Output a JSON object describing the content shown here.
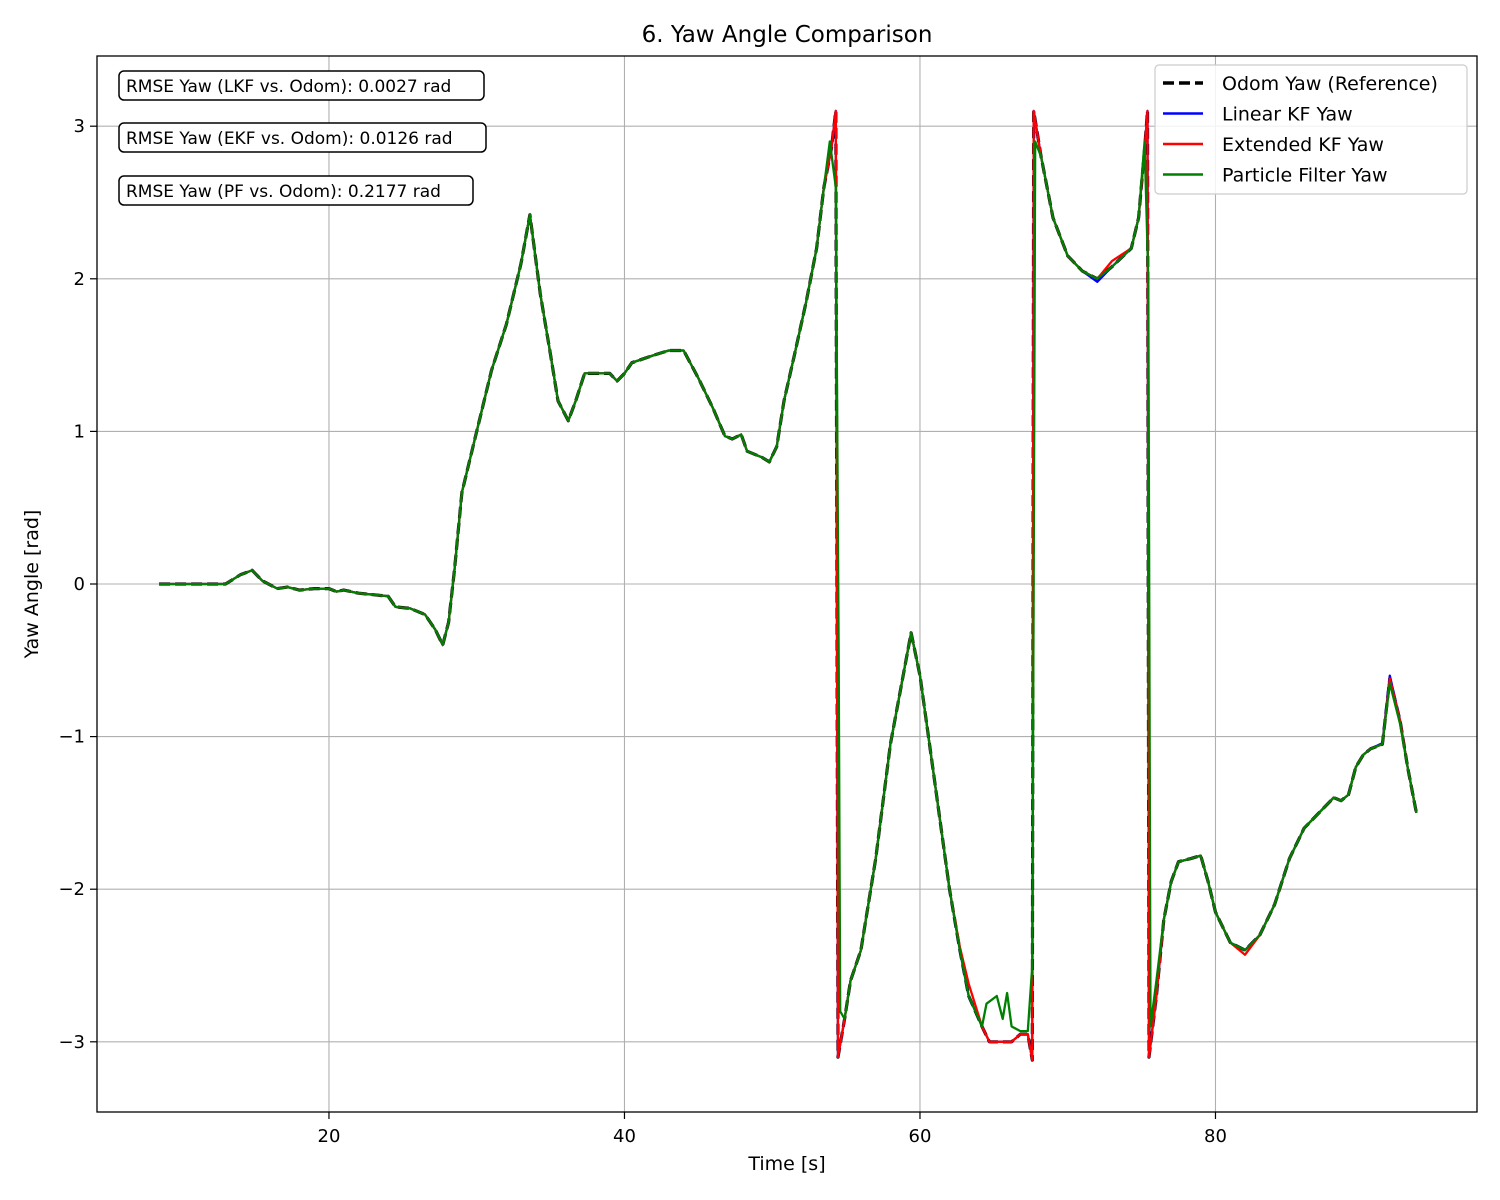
{
  "chart_data": {
    "type": "line",
    "title": "6. Yaw Angle Comparison",
    "xlabel": "Time [s]",
    "ylabel": "Yaw Angle [rad]",
    "xlim": [
      4.3,
      97.7
    ],
    "ylim": [
      -3.46,
      3.46
    ],
    "xticks": [
      20,
      40,
      60,
      80
    ],
    "yticks": [
      -3,
      -2,
      -1,
      0,
      1,
      2,
      3
    ],
    "xtick_labels": [
      "20",
      "40",
      "60",
      "80"
    ],
    "ytick_labels": [
      "−3",
      "−2",
      "−1",
      "0",
      "1",
      "2",
      "3"
    ],
    "grid": true,
    "legend_position": "top-right",
    "annotations": [
      "RMSE Yaw (LKF vs. Odom): 0.0027 rad",
      "RMSE Yaw (EKF vs. Odom): 0.0126 rad",
      "RMSE Yaw (PF vs. Odom): 0.2177 rad"
    ],
    "base": [
      [
        8.5,
        0
      ],
      [
        13,
        0
      ],
      [
        14,
        0.06
      ],
      [
        14.8,
        0.09
      ],
      [
        15.5,
        0.02
      ],
      [
        16.5,
        -0.03
      ],
      [
        17.2,
        -0.02
      ],
      [
        18,
        -0.04
      ],
      [
        19,
        -0.03
      ],
      [
        20,
        -0.03
      ],
      [
        20.5,
        -0.05
      ],
      [
        21,
        -0.04
      ],
      [
        22,
        -0.06
      ],
      [
        23,
        -0.07
      ],
      [
        24,
        -0.08
      ],
      [
        24.5,
        -0.15
      ],
      [
        25.5,
        -0.16
      ],
      [
        26.5,
        -0.2
      ],
      [
        27.2,
        -0.3
      ],
      [
        27.7,
        -0.4
      ],
      [
        28.1,
        -0.25
      ],
      [
        28.5,
        0.1
      ],
      [
        29,
        0.6
      ],
      [
        29.5,
        0.8
      ],
      [
        30,
        1.0
      ],
      [
        31,
        1.4
      ],
      [
        32,
        1.7
      ],
      [
        33,
        2.1
      ],
      [
        33.6,
        2.42
      ],
      [
        34.3,
        1.9
      ],
      [
        35,
        1.5
      ],
      [
        35.5,
        1.2
      ],
      [
        36.2,
        1.07
      ],
      [
        36.7,
        1.2
      ],
      [
        37.3,
        1.38
      ],
      [
        38,
        1.38
      ],
      [
        39,
        1.38
      ],
      [
        39.5,
        1.33
      ],
      [
        40,
        1.38
      ],
      [
        40.5,
        1.45
      ],
      [
        42,
        1.5
      ],
      [
        43,
        1.53
      ],
      [
        44,
        1.53
      ],
      [
        45,
        1.35
      ],
      [
        46,
        1.15
      ],
      [
        46.8,
        0.97
      ],
      [
        47.3,
        0.95
      ],
      [
        47.9,
        0.98
      ],
      [
        48.3,
        0.87
      ],
      [
        49.3,
        0.83
      ],
      [
        49.8,
        0.8
      ],
      [
        50.3,
        0.9
      ],
      [
        50.8,
        1.2
      ],
      [
        51.5,
        1.5
      ],
      [
        52.3,
        1.85
      ],
      [
        53,
        2.2
      ],
      [
        53.5,
        2.6
      ],
      [
        54,
        2.85
      ],
      [
        54.3,
        3.1
      ],
      [
        54.45,
        -3.1
      ],
      [
        54.9,
        -2.85
      ],
      [
        55.3,
        -2.6
      ],
      [
        56,
        -2.4
      ],
      [
        57,
        -1.8
      ],
      [
        58,
        -1.05
      ],
      [
        59.4,
        -0.32
      ],
      [
        60,
        -0.6
      ],
      [
        61,
        -1.3
      ],
      [
        62,
        -2.0
      ],
      [
        62.7,
        -2.4
      ],
      [
        63.3,
        -2.7
      ],
      [
        64.2,
        -2.9
      ],
      [
        64.7,
        -3.0
      ],
      [
        65.5,
        -3.0
      ],
      [
        66.2,
        -3.0
      ],
      [
        66.8,
        -2.95
      ],
      [
        67.3,
        -2.95
      ],
      [
        67.6,
        -3.12
      ],
      [
        67.7,
        3.1
      ],
      [
        68.2,
        2.8
      ],
      [
        69,
        2.4
      ],
      [
        70,
        2.15
      ],
      [
        71,
        2.05
      ],
      [
        72,
        2.0
      ],
      [
        73,
        2.08
      ],
      [
        74.3,
        2.2
      ],
      [
        74.8,
        2.4
      ],
      [
        75.2,
        2.85
      ],
      [
        75.4,
        3.1
      ],
      [
        75.5,
        -3.1
      ],
      [
        76,
        -2.7
      ],
      [
        76.5,
        -2.2
      ],
      [
        77,
        -1.95
      ],
      [
        77.5,
        -1.82
      ],
      [
        78.3,
        -1.8
      ],
      [
        79,
        -1.78
      ],
      [
        79.5,
        -1.95
      ],
      [
        80,
        -2.15
      ],
      [
        81,
        -2.35
      ],
      [
        82,
        -2.4
      ],
      [
        83,
        -2.3
      ],
      [
        84,
        -2.1
      ],
      [
        85,
        -1.8
      ],
      [
        86,
        -1.6
      ],
      [
        87,
        -1.5
      ],
      [
        88,
        -1.4
      ],
      [
        88.5,
        -1.42
      ],
      [
        89,
        -1.38
      ],
      [
        89.5,
        -1.2
      ],
      [
        90,
        -1.12
      ],
      [
        90.5,
        -1.08
      ],
      [
        91.3,
        -1.05
      ],
      [
        91.8,
        -0.62
      ],
      [
        92.5,
        -0.9
      ],
      [
        93,
        -1.2
      ],
      [
        93.6,
        -1.5
      ]
    ],
    "series": [
      {
        "name": "Odom Yaw (Reference)",
        "color": "#000000",
        "dash": true,
        "width": 3.2,
        "offsets": []
      },
      {
        "name": "Linear KF Yaw",
        "color": "#0000ff",
        "dash": false,
        "width": 2.3,
        "offsets": [
          [
            72,
            -0.02
          ],
          [
            91.8,
            0.02
          ]
        ]
      },
      {
        "name": "Extended KF Yaw",
        "color": "#ff0000",
        "dash": false,
        "width": 2.3,
        "offsets": [
          [
            63.3,
            0.08
          ],
          [
            72.8,
            0.05
          ],
          [
            82,
            -0.03
          ]
        ]
      },
      {
        "name": "Particle Filter Yaw",
        "color": "#008000",
        "dash": false,
        "width": 2.3,
        "pf": [
          [
            8.5,
            0
          ],
          [
            13,
            0
          ],
          [
            14,
            0.06
          ],
          [
            14.8,
            0.09
          ],
          [
            15.5,
            0.02
          ],
          [
            16.5,
            -0.03
          ],
          [
            17.2,
            -0.02
          ],
          [
            18,
            -0.04
          ],
          [
            19,
            -0.03
          ],
          [
            20,
            -0.03
          ],
          [
            20.5,
            -0.05
          ],
          [
            21,
            -0.04
          ],
          [
            22,
            -0.06
          ],
          [
            23,
            -0.07
          ],
          [
            24,
            -0.08
          ],
          [
            24.5,
            -0.15
          ],
          [
            25.5,
            -0.16
          ],
          [
            26.5,
            -0.2
          ],
          [
            27.2,
            -0.3
          ],
          [
            27.7,
            -0.4
          ],
          [
            28.1,
            -0.25
          ],
          [
            28.5,
            0.1
          ],
          [
            29,
            0.6
          ],
          [
            29.5,
            0.8
          ],
          [
            30,
            1.0
          ],
          [
            31,
            1.4
          ],
          [
            32,
            1.7
          ],
          [
            33,
            2.1
          ],
          [
            33.6,
            2.42
          ],
          [
            34.3,
            1.9
          ],
          [
            35,
            1.5
          ],
          [
            35.5,
            1.2
          ],
          [
            36.2,
            1.07
          ],
          [
            36.7,
            1.2
          ],
          [
            37.3,
            1.38
          ],
          [
            38,
            1.38
          ],
          [
            39,
            1.38
          ],
          [
            39.5,
            1.33
          ],
          [
            40,
            1.38
          ],
          [
            40.5,
            1.45
          ],
          [
            42,
            1.5
          ],
          [
            43,
            1.53
          ],
          [
            44,
            1.53
          ],
          [
            45,
            1.35
          ],
          [
            46,
            1.15
          ],
          [
            46.8,
            0.97
          ],
          [
            47.3,
            0.95
          ],
          [
            47.9,
            0.98
          ],
          [
            48.3,
            0.87
          ],
          [
            49.3,
            0.83
          ],
          [
            49.8,
            0.8
          ],
          [
            50.3,
            0.9
          ],
          [
            50.8,
            1.2
          ],
          [
            51.5,
            1.5
          ],
          [
            52.3,
            1.85
          ],
          [
            53,
            2.2
          ],
          [
            53.5,
            2.6
          ],
          [
            53.9,
            2.9
          ],
          [
            54.3,
            2.6
          ],
          [
            54.5,
            -0.5
          ],
          [
            54.6,
            -2.8
          ],
          [
            54.9,
            -2.85
          ],
          [
            55.3,
            -2.6
          ],
          [
            56,
            -2.4
          ],
          [
            57,
            -1.8
          ],
          [
            58,
            -1.05
          ],
          [
            59.4,
            -0.32
          ],
          [
            60,
            -0.6
          ],
          [
            61,
            -1.3
          ],
          [
            62,
            -2.0
          ],
          [
            62.7,
            -2.4
          ],
          [
            63.3,
            -2.7
          ],
          [
            64.2,
            -2.9
          ],
          [
            64.5,
            -2.75
          ],
          [
            65.2,
            -2.7
          ],
          [
            65.6,
            -2.85
          ],
          [
            65.9,
            -2.68
          ],
          [
            66.2,
            -2.9
          ],
          [
            66.8,
            -2.93
          ],
          [
            67.3,
            -2.93
          ],
          [
            67.6,
            -2.5
          ],
          [
            67.8,
            2.9
          ],
          [
            68.2,
            2.8
          ],
          [
            69,
            2.4
          ],
          [
            70,
            2.15
          ],
          [
            71,
            2.05
          ],
          [
            72,
            2.0
          ],
          [
            73,
            2.08
          ],
          [
            74.3,
            2.2
          ],
          [
            74.8,
            2.4
          ],
          [
            75.2,
            2.9
          ],
          [
            75.45,
            2.0
          ],
          [
            75.6,
            -2.9
          ],
          [
            76,
            -2.6
          ],
          [
            76.5,
            -2.2
          ],
          [
            77,
            -1.95
          ],
          [
            77.5,
            -1.82
          ],
          [
            78.3,
            -1.8
          ],
          [
            79,
            -1.78
          ],
          [
            79.5,
            -1.95
          ],
          [
            80,
            -2.15
          ],
          [
            81,
            -2.35
          ],
          [
            82,
            -2.4
          ],
          [
            83,
            -2.3
          ],
          [
            84,
            -2.1
          ],
          [
            85,
            -1.8
          ],
          [
            86,
            -1.6
          ],
          [
            87,
            -1.5
          ],
          [
            88,
            -1.4
          ],
          [
            88.5,
            -1.42
          ],
          [
            89,
            -1.38
          ],
          [
            89.5,
            -1.2
          ],
          [
            90,
            -1.12
          ],
          [
            90.5,
            -1.08
          ],
          [
            91.3,
            -1.05
          ],
          [
            91.8,
            -0.65
          ],
          [
            92.5,
            -0.92
          ],
          [
            93,
            -1.2
          ],
          [
            93.6,
            -1.5
          ]
        ]
      }
    ]
  }
}
